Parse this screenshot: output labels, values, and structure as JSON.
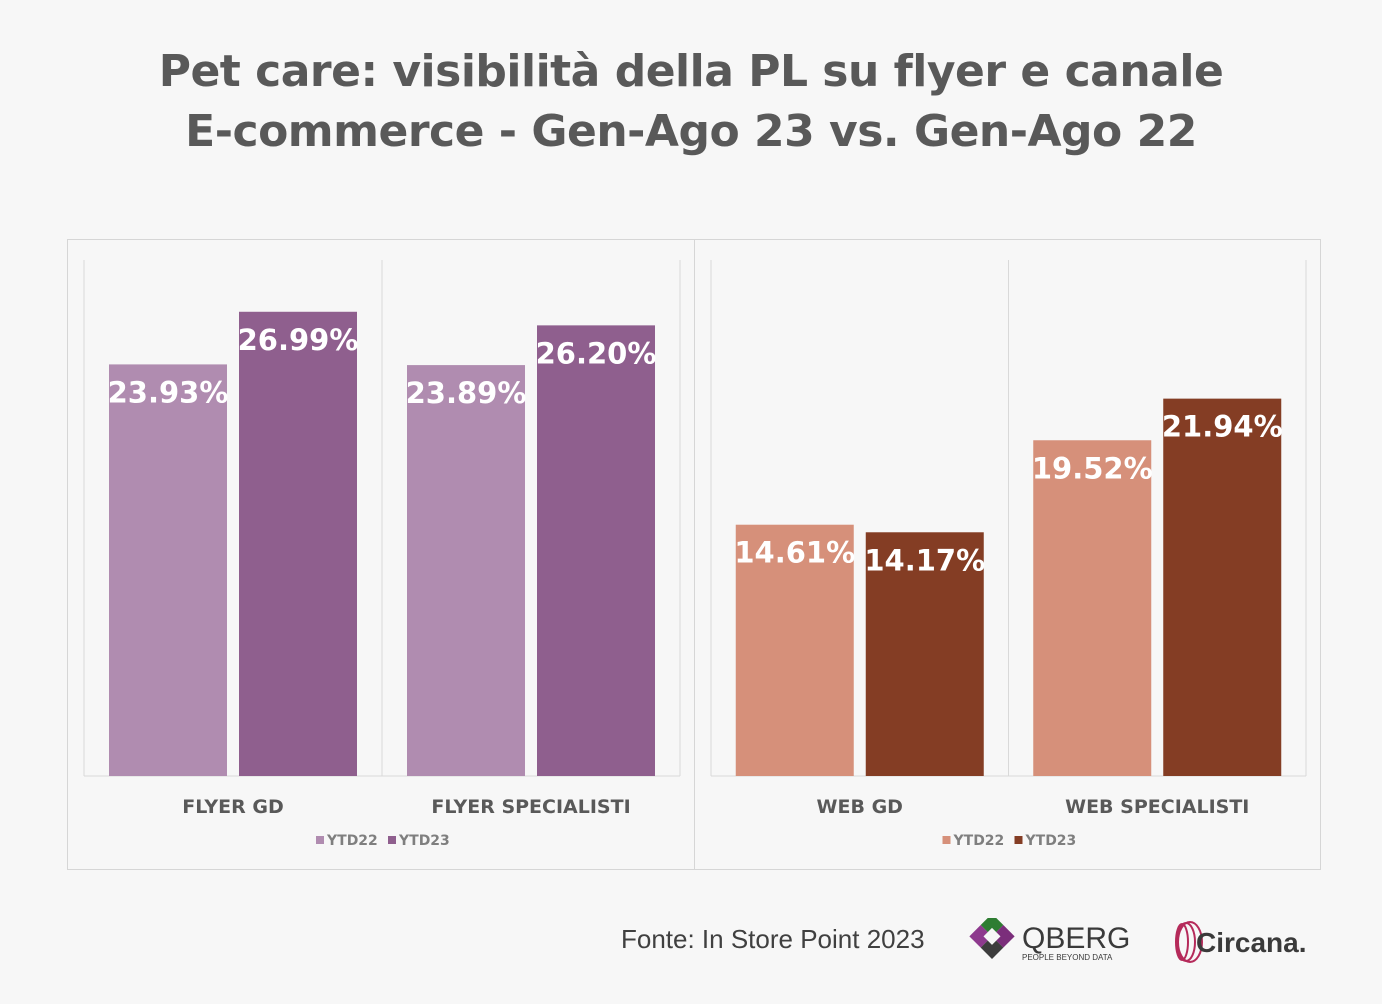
{
  "title": {
    "line1": "Pet care: visibilità della PL su flyer e canale",
    "line2": "E-commerce  - Gen-Ago 23  vs. Gen-Ago 22"
  },
  "chart_data": [
    {
      "type": "bar",
      "categories": [
        "FLYER GD",
        "FLYER SPECIALISTI"
      ],
      "series": [
        {
          "name": "YTD22",
          "values": [
            23.93,
            23.89
          ],
          "labels": [
            "23.93%",
            "23.89%"
          ],
          "color": "#b08cb0"
        },
        {
          "name": "YTD23",
          "values": [
            26.99,
            26.2
          ],
          "labels": [
            "26.99%",
            "26.20%"
          ],
          "color": "#8f5f8e"
        }
      ],
      "legend": "bottom",
      "grid": false
    },
    {
      "type": "bar",
      "categories": [
        "WEB GD",
        "WEB SPECIALISTI"
      ],
      "series": [
        {
          "name": "YTD22",
          "values": [
            14.61,
            19.52
          ],
          "labels": [
            "14.61%",
            "19.52%"
          ],
          "color": "#d6907a"
        },
        {
          "name": "YTD23",
          "values": [
            14.17,
            21.94
          ],
          "labels": [
            "14.17%",
            "21.94%"
          ],
          "color": "#843d24"
        }
      ],
      "legend": "bottom",
      "grid": false
    }
  ],
  "footer": {
    "source": "Fonte: In Store Point 2023",
    "logo_qberg": "QBERG",
    "logo_qberg_tagline": "PEOPLE BEYOND DATA",
    "logo_circana": "Circana."
  },
  "colors": {
    "title": "#595959",
    "background": "#f7f7f7"
  }
}
